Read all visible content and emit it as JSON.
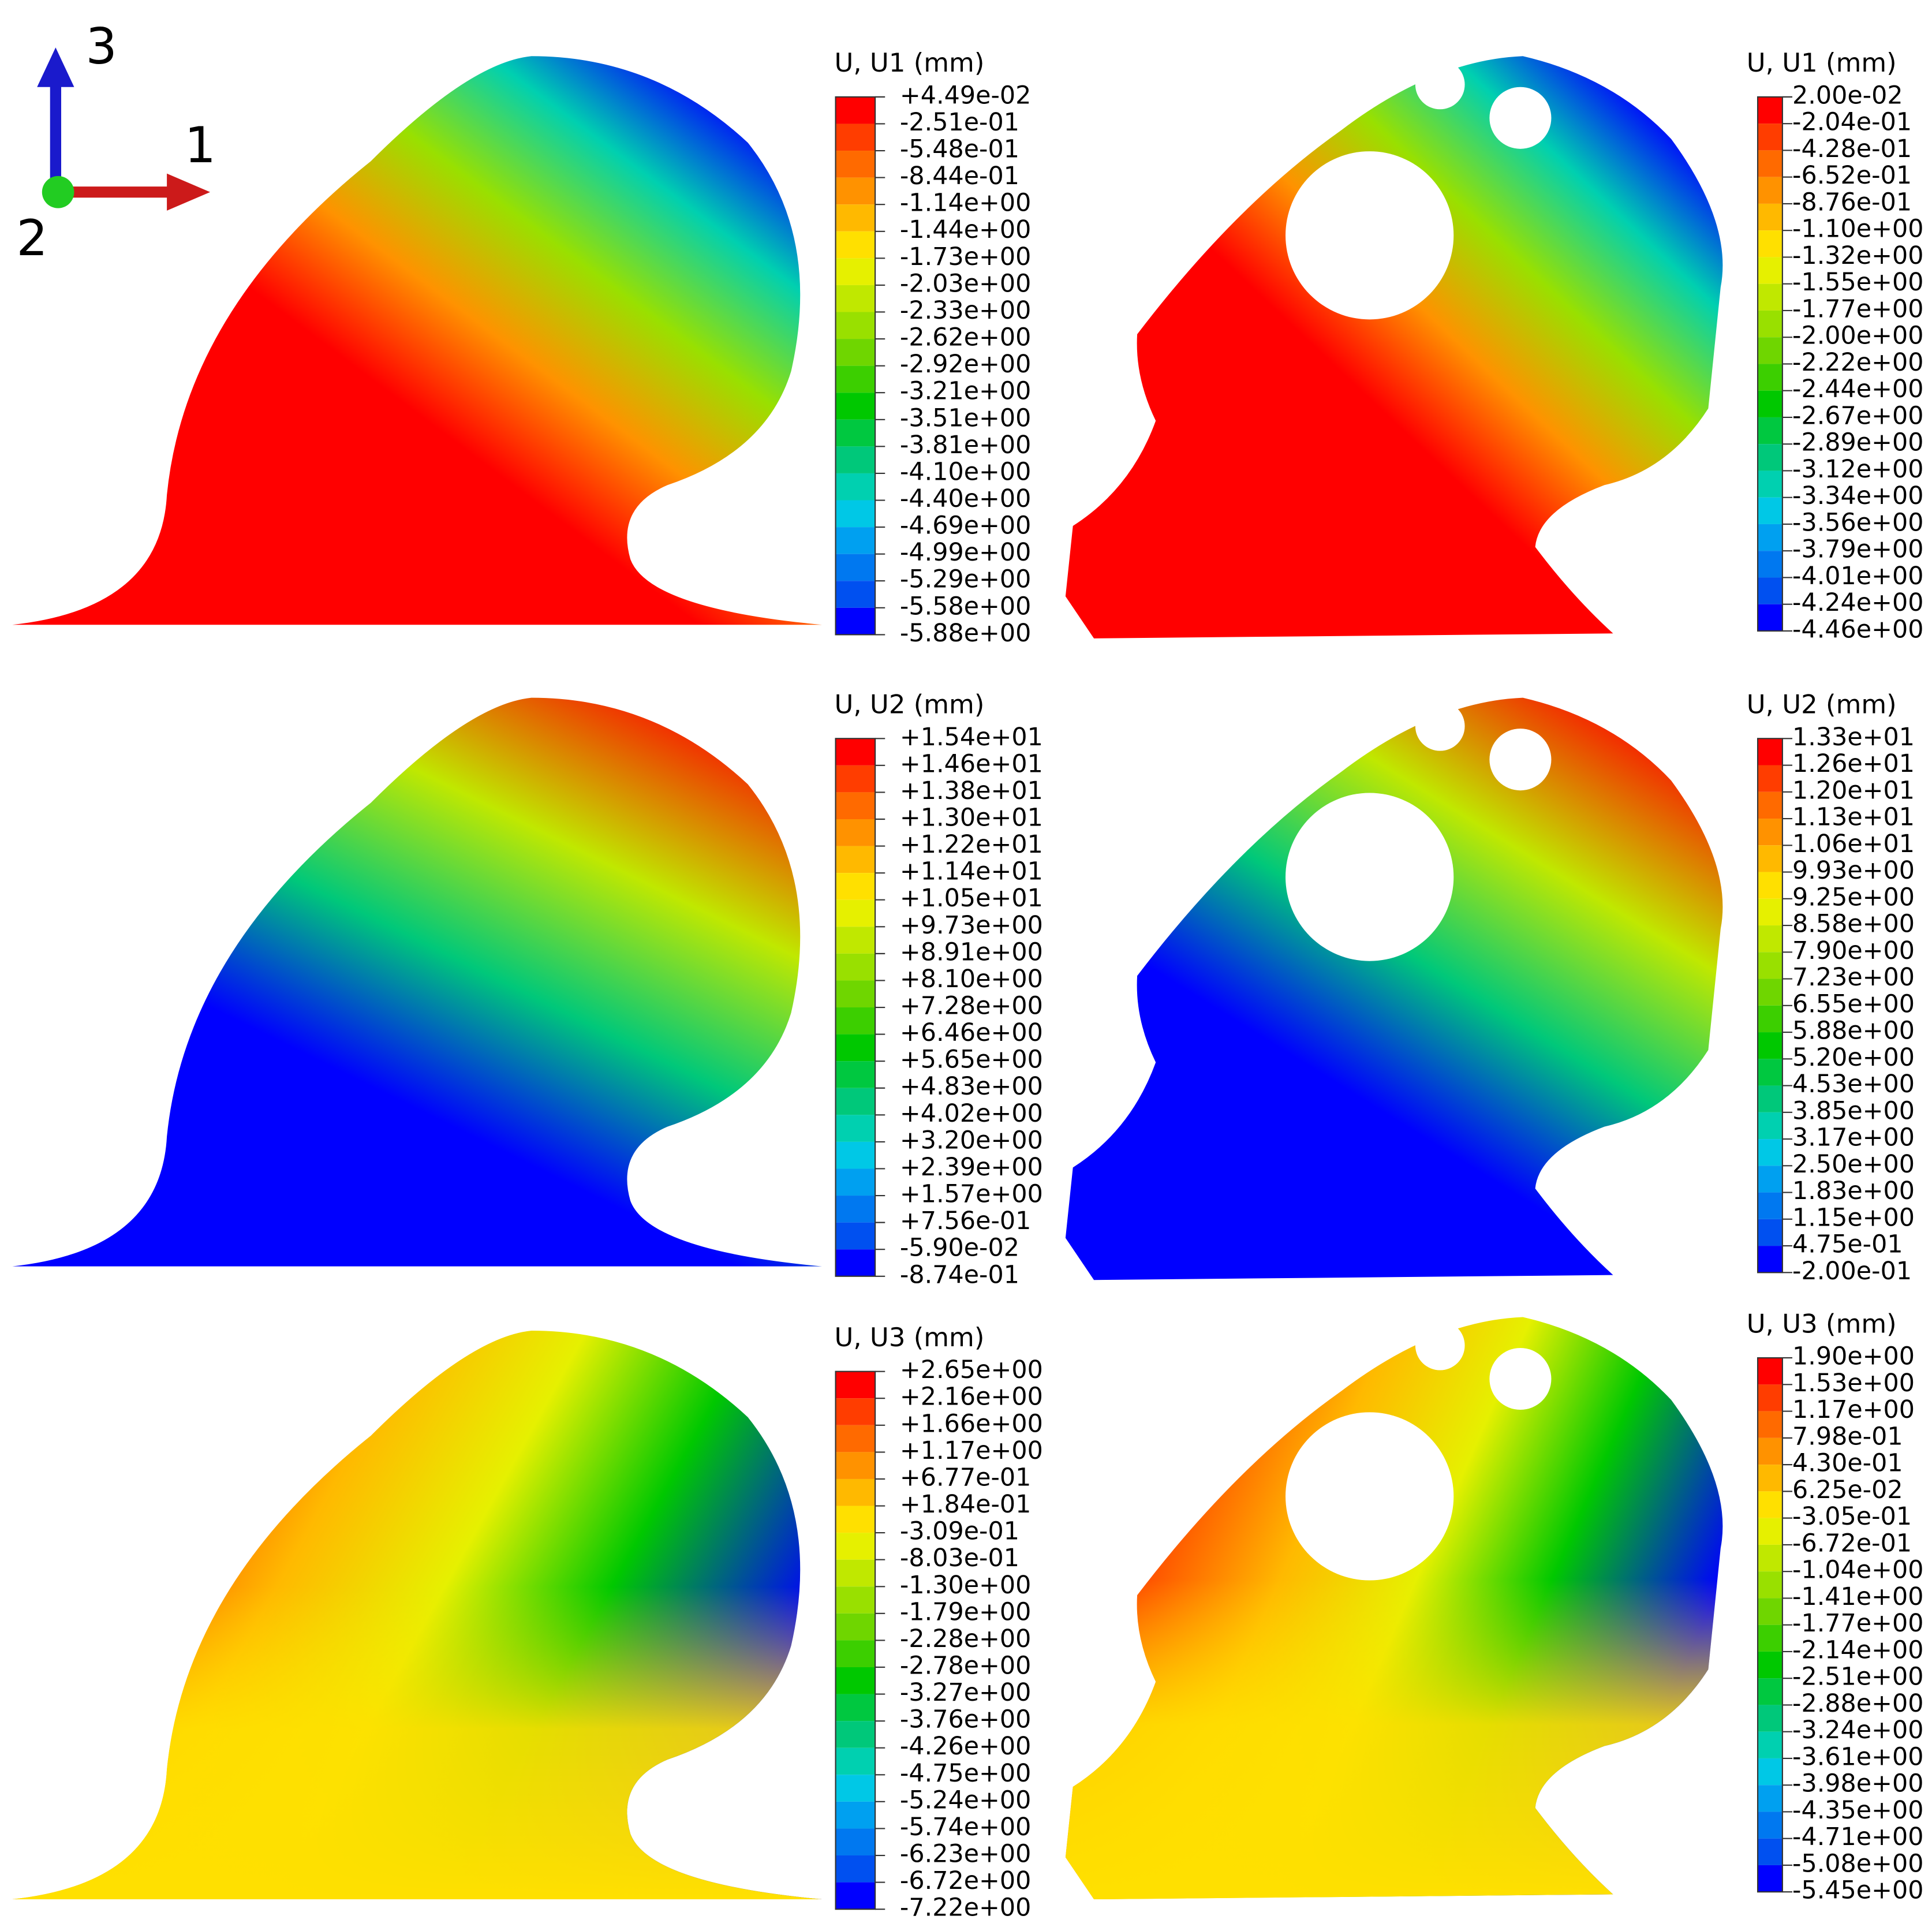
{
  "triad": {
    "labels": [
      "3",
      "1",
      "2"
    ]
  },
  "legend_colors": [
    "#ff0000",
    "#ff3d00",
    "#ff6a00",
    "#ff9200",
    "#ffb900",
    "#ffe000",
    "#e6f000",
    "#c0e800",
    "#99e000",
    "#6fd600",
    "#3ccf00",
    "#00c800",
    "#00c840",
    "#00c87a",
    "#00d0b0",
    "#00c8e6",
    "#00a0f0",
    "#0078f0",
    "#0050f0",
    "#0000ff"
  ],
  "panels": [
    {
      "title": "U, U1 (mm)",
      "labels": [
        "+4.49e-02",
        "-2.51e-01",
        "-5.48e-01",
        "-8.44e-01",
        "-1.14e+00",
        "-1.44e+00",
        "-1.73e+00",
        "-2.03e+00",
        "-2.33e+00",
        "-2.62e+00",
        "-2.92e+00",
        "-3.21e+00",
        "-3.51e+00",
        "-3.81e+00",
        "-4.10e+00",
        "-4.40e+00",
        "-4.69e+00",
        "-4.99e+00",
        "-5.29e+00",
        "-5.58e+00",
        "-5.88e+00"
      ]
    },
    {
      "title": "U, U1 (mm)",
      "labels": [
        "2.00e-02",
        "-2.04e-01",
        "-4.28e-01",
        "-6.52e-01",
        "-8.76e-01",
        "-1.10e+00",
        "-1.32e+00",
        "-1.55e+00",
        "-1.77e+00",
        "-2.00e+00",
        "-2.22e+00",
        "-2.44e+00",
        "-2.67e+00",
        "-2.89e+00",
        "-3.12e+00",
        "-3.34e+00",
        "-3.56e+00",
        "-3.79e+00",
        "-4.01e+00",
        "-4.24e+00",
        "-4.46e+00"
      ]
    },
    {
      "title": "U, U2 (mm)",
      "labels": [
        "+1.54e+01",
        "+1.46e+01",
        "+1.38e+01",
        "+1.30e+01",
        "+1.22e+01",
        "+1.14e+01",
        "+1.05e+01",
        "+9.73e+00",
        "+8.91e+00",
        "+8.10e+00",
        "+7.28e+00",
        "+6.46e+00",
        "+5.65e+00",
        "+4.83e+00",
        "+4.02e+00",
        "+3.20e+00",
        "+2.39e+00",
        "+1.57e+00",
        "+7.56e-01",
        "-5.90e-02",
        "-8.74e-01"
      ]
    },
    {
      "title": "U, U2 (mm)",
      "labels": [
        "1.33e+01",
        "1.26e+01",
        "1.20e+01",
        "1.13e+01",
        "1.06e+01",
        "9.93e+00",
        "9.25e+00",
        "8.58e+00",
        "7.90e+00",
        "7.23e+00",
        "6.55e+00",
        "5.88e+00",
        "5.20e+00",
        "4.53e+00",
        "3.85e+00",
        "3.17e+00",
        "2.50e+00",
        "1.83e+00",
        "1.15e+00",
        "4.75e-01",
        "-2.00e-01"
      ]
    },
    {
      "title": "U, U3 (mm)",
      "labels": [
        "+2.65e+00",
        "+2.16e+00",
        "+1.66e+00",
        "+1.17e+00",
        "+6.77e-01",
        "+1.84e-01",
        "-3.09e-01",
        "-8.03e-01",
        "-1.30e+00",
        "-1.79e+00",
        "-2.28e+00",
        "-2.78e+00",
        "-3.27e+00",
        "-3.76e+00",
        "-4.26e+00",
        "-4.75e+00",
        "-5.24e+00",
        "-5.74e+00",
        "-6.23e+00",
        "-6.72e+00",
        "-7.22e+00"
      ]
    },
    {
      "title": "U, U3 (mm)",
      "labels": [
        "1.90e+00",
        "1.53e+00",
        "1.17e+00",
        "7.98e-01",
        "4.30e-01",
        "6.25e-02",
        "-3.05e-01",
        "-6.72e-01",
        "-1.04e+00",
        "-1.41e+00",
        "-1.77e+00",
        "-2.14e+00",
        "-2.51e+00",
        "-2.88e+00",
        "-3.24e+00",
        "-3.61e+00",
        "-3.98e+00",
        "-4.35e+00",
        "-4.71e+00",
        "-5.08e+00",
        "-5.45e+00"
      ]
    }
  ]
}
